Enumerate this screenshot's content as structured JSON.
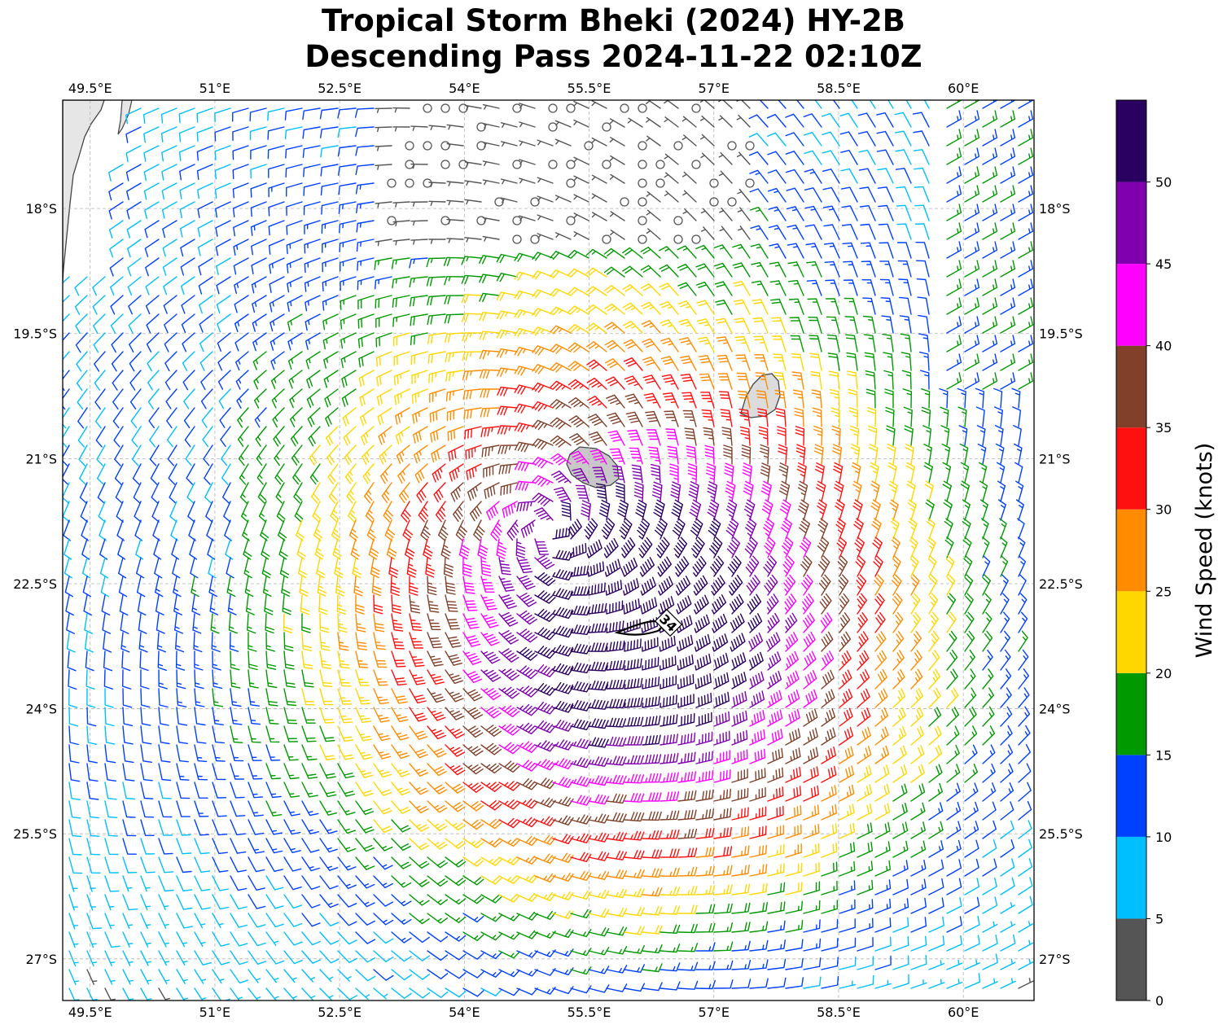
{
  "title": {
    "line1": "Tropical Storm Bheki (2024) HY-2B",
    "line2": "Descending Pass 2024-11-22 02:10Z"
  },
  "map": {
    "lon_range": [
      49.17,
      60.85
    ],
    "lat_range": [
      -27.5,
      -16.7
    ],
    "lon_ticks": [
      {
        "value": 49.5,
        "label": "49.5°E"
      },
      {
        "value": 51.0,
        "label": "51°E"
      },
      {
        "value": 52.5,
        "label": "52.5°E"
      },
      {
        "value": 54.0,
        "label": "54°E"
      },
      {
        "value": 55.5,
        "label": "55.5°E"
      },
      {
        "value": 57.0,
        "label": "57°E"
      },
      {
        "value": 58.5,
        "label": "58.5°E"
      },
      {
        "value": 60.0,
        "label": "60°E"
      }
    ],
    "lat_ticks": [
      {
        "value": -18.0,
        "label": "18°S"
      },
      {
        "value": -19.5,
        "label": "19.5°S"
      },
      {
        "value": -21.0,
        "label": "21°S"
      },
      {
        "value": -22.5,
        "label": "22.5°S"
      },
      {
        "value": -24.0,
        "label": "24°S"
      },
      {
        "value": -25.5,
        "label": "25.5°S"
      },
      {
        "value": -27.0,
        "label": "27°S"
      }
    ],
    "gridlines": true,
    "storm_center": {
      "lon": 55.0,
      "lat": -21.85
    },
    "contour_label": "34",
    "land": [
      {
        "name": "Madagascar (east coast)",
        "shape": "coastline"
      },
      {
        "name": "Réunion",
        "shape": "island"
      },
      {
        "name": "Mauritius",
        "shape": "island"
      }
    ]
  },
  "colorbar": {
    "label": "Wind Speed (knots)",
    "bins": [
      {
        "min": 0,
        "max": 5,
        "color": "#555555"
      },
      {
        "min": 5,
        "max": 10,
        "color": "#00bfff"
      },
      {
        "min": 10,
        "max": 15,
        "color": "#0040ff"
      },
      {
        "min": 15,
        "max": 20,
        "color": "#009a00"
      },
      {
        "min": 20,
        "max": 25,
        "color": "#ffd700"
      },
      {
        "min": 25,
        "max": 30,
        "color": "#ff8c00"
      },
      {
        "min": 30,
        "max": 35,
        "color": "#ff1010"
      },
      {
        "min": 35,
        "max": 40,
        "color": "#80402a"
      },
      {
        "min": 40,
        "max": 45,
        "color": "#ff00ff"
      },
      {
        "min": 45,
        "max": 50,
        "color": "#8000b0"
      },
      {
        "min": 50,
        "max": 55,
        "color": "#2a0060"
      }
    ],
    "tick_labels": [
      "0",
      "5",
      "10",
      "15",
      "20",
      "25",
      "30",
      "35",
      "40",
      "45",
      "50"
    ]
  }
}
